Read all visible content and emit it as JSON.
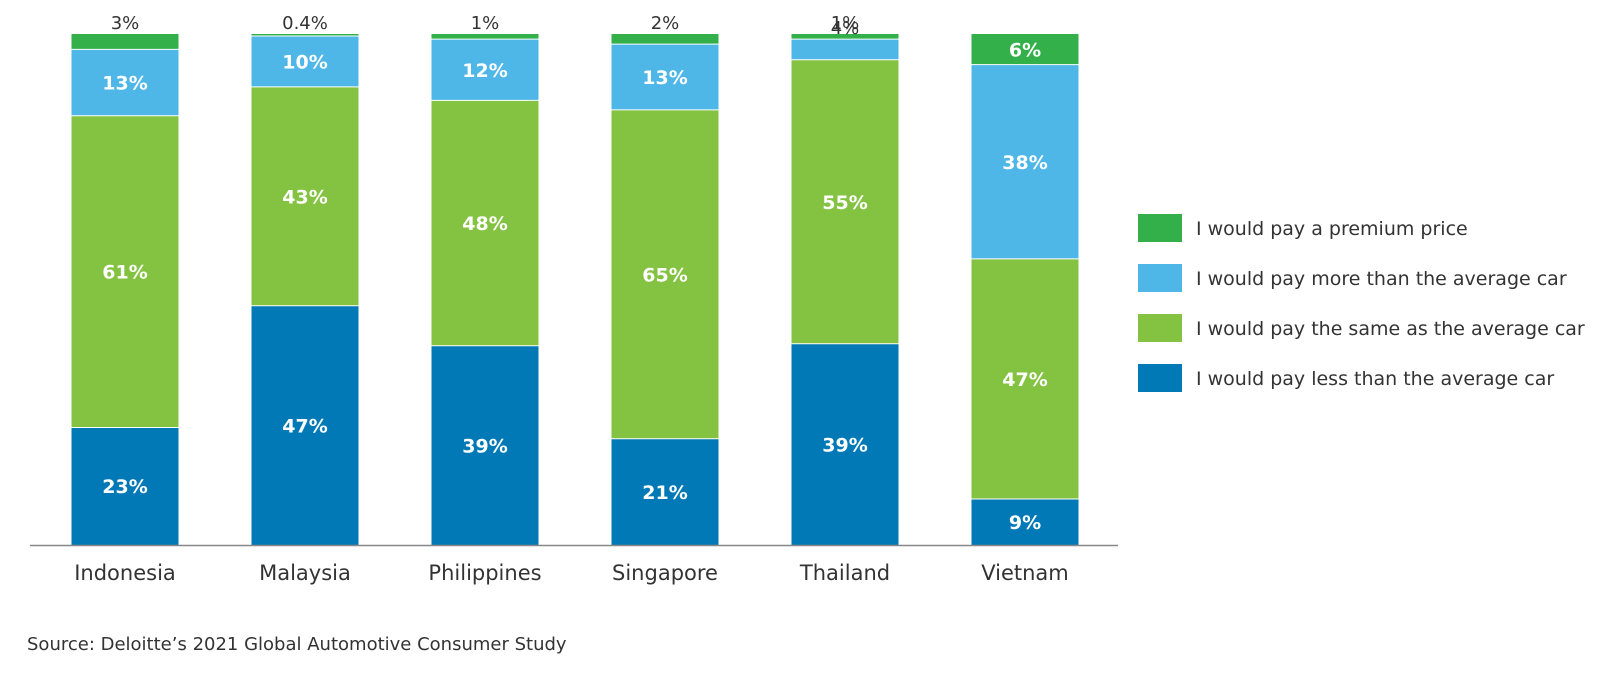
{
  "chart_data": {
    "type": "bar",
    "stacked": true,
    "categories": [
      "Indonesia",
      "Malaysia",
      "Philippines",
      "Singapore",
      "Thailand",
      "Vietnam"
    ],
    "series": [
      {
        "name": "I would pay less than the average car",
        "color": "#0079b6",
        "values": [
          23,
          47,
          39,
          21,
          39,
          9
        ],
        "labels": [
          "23%",
          "47%",
          "39%",
          "21%",
          "39%",
          "9%"
        ]
      },
      {
        "name": "I would pay the same as the average car",
        "color": "#84c341",
        "values": [
          61,
          43,
          48,
          65,
          55,
          47
        ],
        "labels": [
          "61%",
          "43%",
          "48%",
          "65%",
          "55%",
          "47%"
        ]
      },
      {
        "name": "I would pay more than the average car",
        "color": "#4eb7e8",
        "values": [
          13,
          10,
          12,
          13,
          4,
          38
        ],
        "labels": [
          "13%",
          "10%",
          "12%",
          "13%",
          "4%",
          "38%"
        ]
      },
      {
        "name": "I would pay a premium price",
        "color": "#33b04a",
        "values": [
          3,
          0.4,
          1,
          2,
          1,
          6
        ],
        "labels": [
          "3%",
          "0.4%",
          "1%",
          "2%",
          "1%",
          "6%"
        ]
      }
    ],
    "legend_order": [
      3,
      2,
      1,
      0
    ],
    "legend_position": "right",
    "ylim": [
      0,
      100
    ],
    "grid": false,
    "axis_line_color": "#888888",
    "source": "Source: Deloitte’s 2021 Global Automotive Consumer Study"
  }
}
